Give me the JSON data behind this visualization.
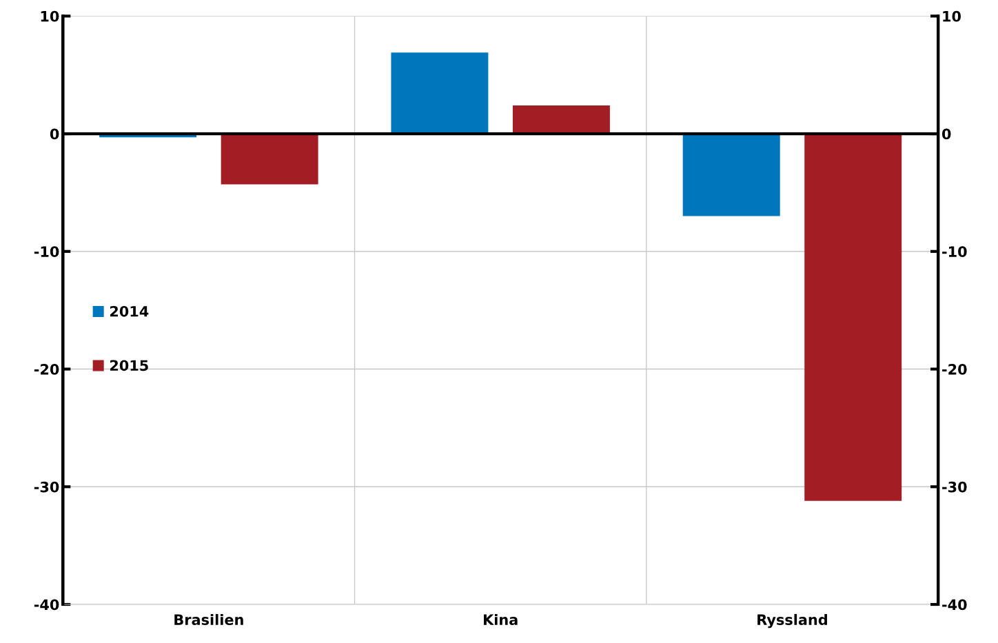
{
  "chart_data": {
    "type": "bar",
    "categories": [
      "Brasilien",
      "Kina",
      "Ryssland"
    ],
    "series": [
      {
        "name": "2014",
        "color": "#0077bd",
        "values": [
          -0.3,
          6.9,
          -7.0
        ]
      },
      {
        "name": "2015",
        "color": "#a31d24",
        "values": [
          -4.3,
          2.4,
          -31.2
        ]
      }
    ],
    "ylim": [
      -40,
      10
    ],
    "yticks": [
      -40,
      -30,
      -20,
      -10,
      0,
      10
    ],
    "y2lim": [
      -40,
      10
    ],
    "y2ticks": [
      -40,
      -30,
      -20,
      -10,
      0,
      10
    ],
    "grid": true,
    "legend": "left"
  }
}
